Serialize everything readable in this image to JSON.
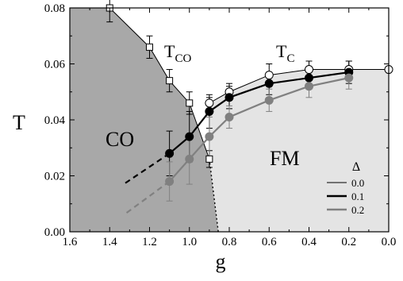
{
  "chart_data": {
    "type": "scatter",
    "xlabel": "g",
    "ylabel": "T",
    "xlim": [
      1.6,
      0.0
    ],
    "ylim": [
      0.0,
      0.08
    ],
    "x_reversed": true,
    "x_ticks": [
      "1.6",
      "1.4",
      "1.2",
      "1.0",
      "0.8",
      "0.6",
      "0.4",
      "0.2",
      "0.0"
    ],
    "x_tick_values": [
      1.6,
      1.4,
      1.2,
      1.0,
      0.8,
      0.6,
      0.4,
      0.2,
      0.0
    ],
    "y_ticks": [
      "0.00",
      "0.02",
      "0.04",
      "0.06",
      "0.08"
    ],
    "y_tick_values": [
      0.0,
      0.02,
      0.04,
      0.06,
      0.08
    ],
    "region_labels": {
      "co": "CO",
      "fm": "FM"
    },
    "curve_labels": {
      "tco_main": "T",
      "tco_sub": "CO",
      "tc_main": "T",
      "tc_sub": "C"
    },
    "legend": {
      "title": "Δ",
      "entries": [
        "0.0",
        "0.1",
        "0.2"
      ]
    },
    "colors": {
      "co_fill": "#a8a8a8",
      "fm_fill": "#e4e4e4",
      "series_0": "#000000",
      "series_1": "#000000",
      "series_2": "#808080"
    },
    "co_boundary": {
      "x": [
        1.4,
        1.2,
        1.1,
        1.0,
        0.9
      ],
      "y": [
        0.08,
        0.066,
        0.054,
        0.046,
        0.026
      ],
      "err": [
        0.005,
        0.004,
        0.004,
        0.004,
        0.003
      ],
      "extension_dotted": {
        "x": [
          0.9,
          0.855
        ],
        "y": [
          0.026,
          0.0
        ]
      }
    },
    "series": [
      {
        "name": "0.0",
        "marker": "open-circle",
        "x": [
          0.9,
          0.8,
          0.6,
          0.4,
          0.2,
          0.0
        ],
        "y": [
          0.046,
          0.05,
          0.056,
          0.058,
          0.058,
          0.058
        ],
        "err": [
          0.002,
          0.003,
          0.004,
          0.003,
          0.003,
          0.0
        ]
      },
      {
        "name": "0.1",
        "marker": "filled-circle",
        "x": [
          1.1,
          1.0,
          0.9,
          0.8,
          0.6,
          0.4,
          0.2
        ],
        "y": [
          0.028,
          0.034,
          0.043,
          0.048,
          0.053,
          0.055,
          0.057
        ],
        "err": [
          0.008,
          0.009,
          0.006,
          0.004,
          0.004,
          0.004,
          0.004
        ],
        "dashed_extension": {
          "x": [
            1.1,
            1.33
          ],
          "y": [
            0.028,
            0.017
          ]
        }
      },
      {
        "name": "0.2",
        "marker": "filled-circle",
        "x": [
          1.1,
          1.0,
          0.9,
          0.8,
          0.6,
          0.4,
          0.2
        ],
        "y": [
          0.018,
          0.026,
          0.034,
          0.041,
          0.047,
          0.052,
          0.055
        ],
        "err": [
          0.007,
          0.009,
          0.007,
          0.004,
          0.004,
          0.004,
          0.004
        ],
        "dashed_extension": {
          "x": [
            1.1,
            1.33
          ],
          "y": [
            0.018,
            0.006
          ]
        }
      }
    ]
  }
}
